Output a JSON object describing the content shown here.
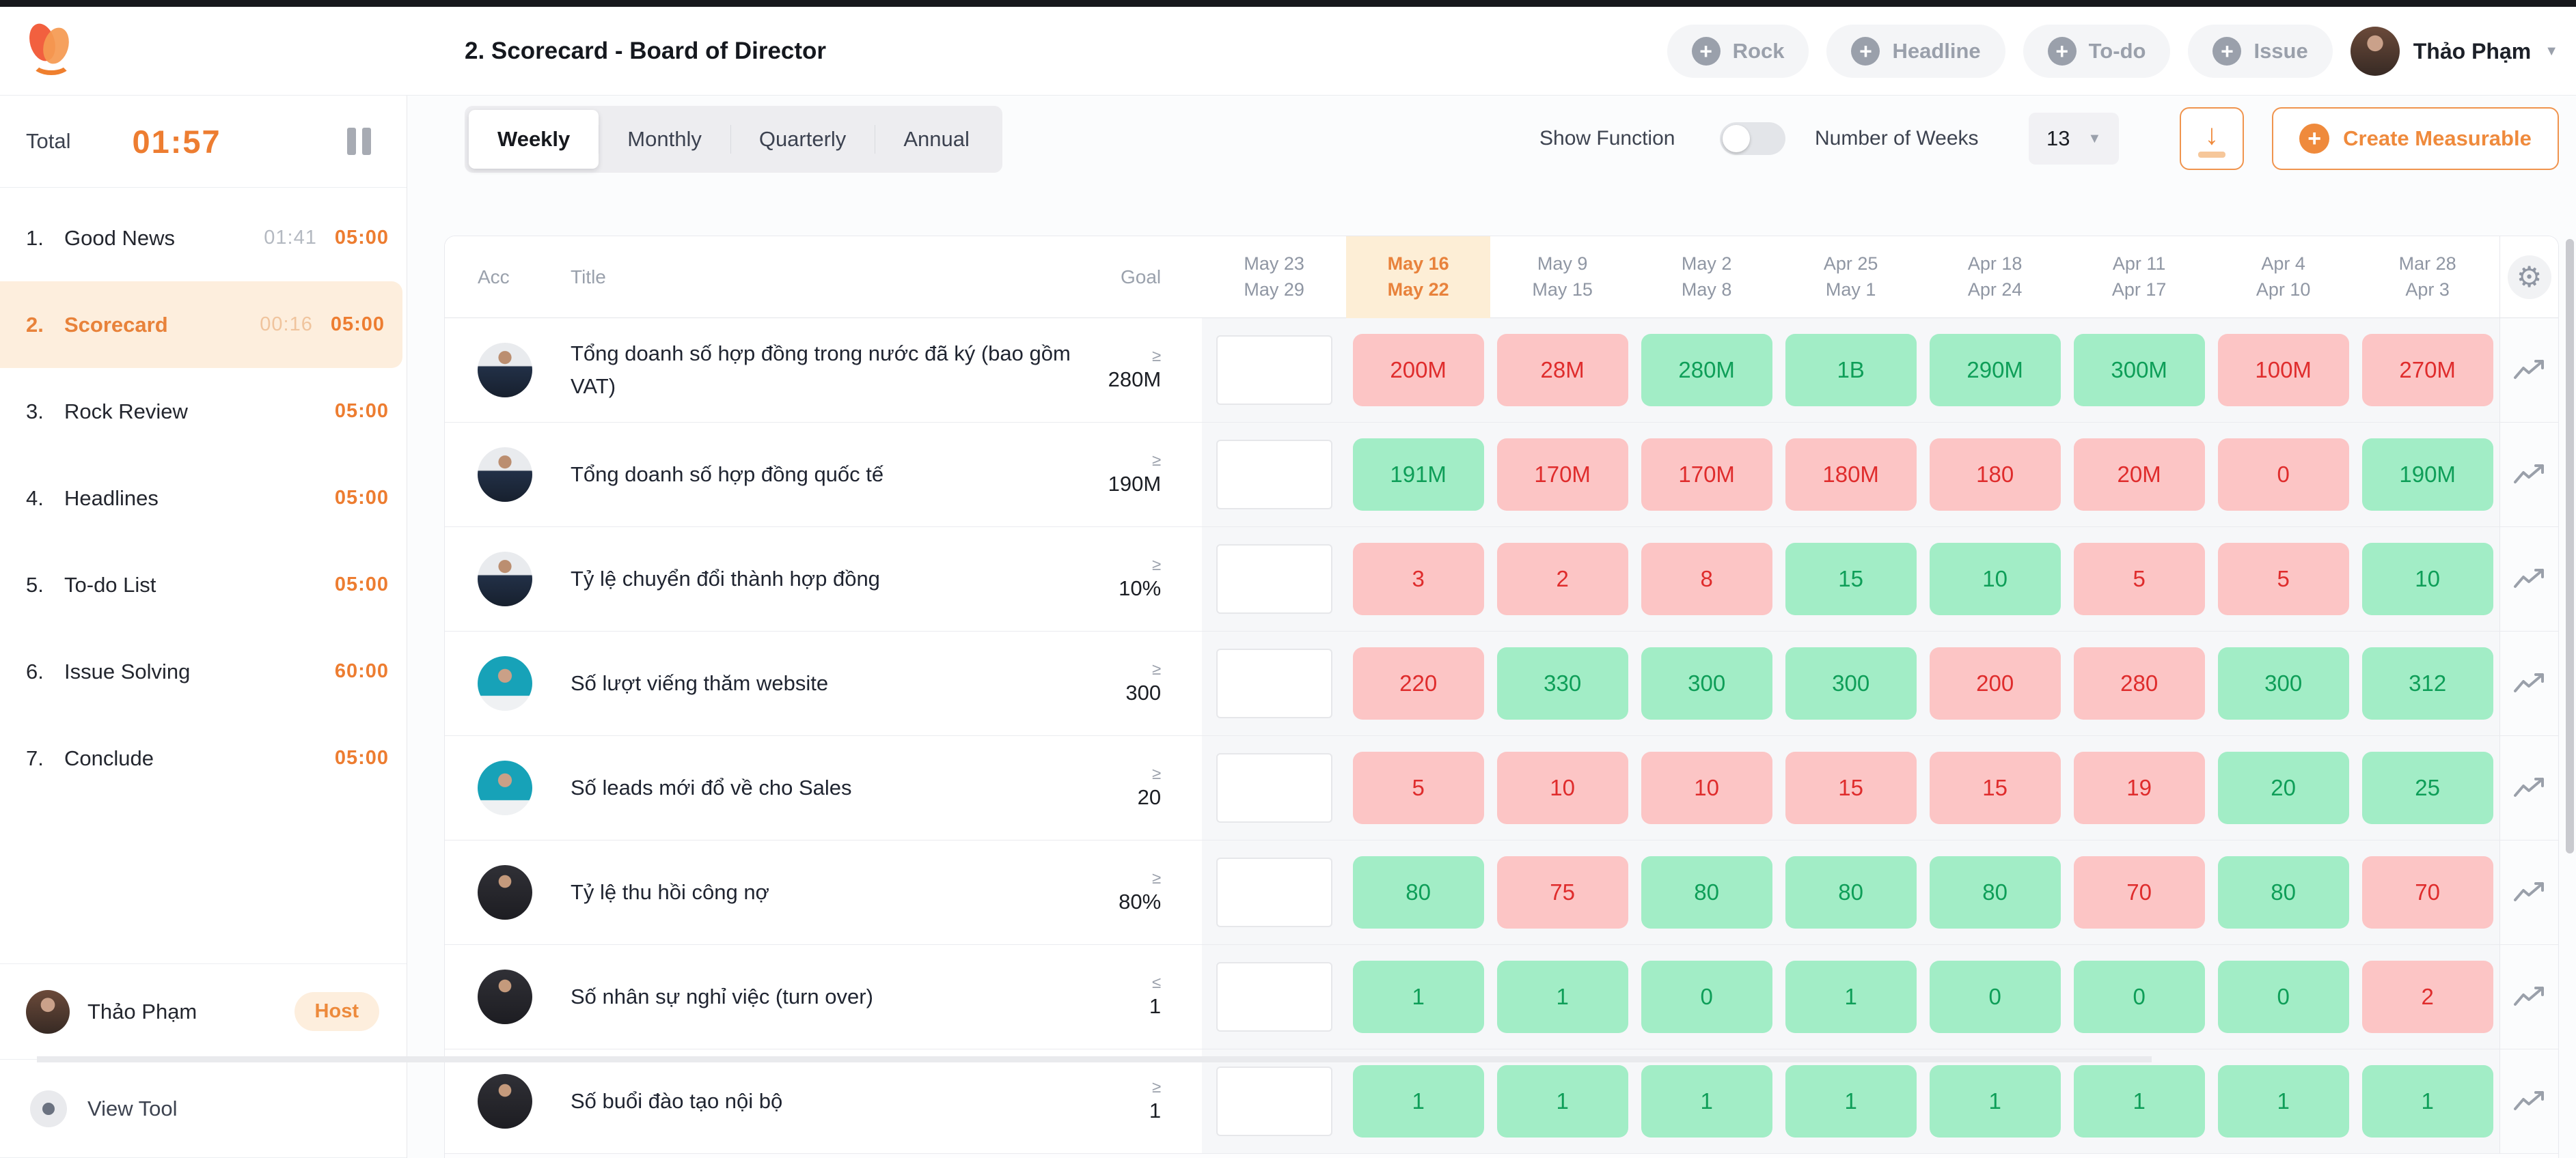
{
  "header": {
    "title": "2. Scorecard - Board of Director",
    "actions": [
      {
        "label": "Rock"
      },
      {
        "label": "Headline"
      },
      {
        "label": "To-do"
      },
      {
        "label": "Issue"
      }
    ],
    "user_name": "Thảo Phạm"
  },
  "sidebar": {
    "total_label": "Total",
    "total_time": "01:57",
    "items": [
      {
        "num": "1.",
        "label": "Good News",
        "elapsed": "01:41",
        "duration": "05:00",
        "active": false
      },
      {
        "num": "2.",
        "label": "Scorecard",
        "elapsed": "00:16",
        "duration": "05:00",
        "active": true
      },
      {
        "num": "3.",
        "label": "Rock Review",
        "elapsed": "",
        "duration": "05:00",
        "active": false
      },
      {
        "num": "4.",
        "label": "Headlines",
        "elapsed": "",
        "duration": "05:00",
        "active": false
      },
      {
        "num": "5.",
        "label": "To-do List",
        "elapsed": "",
        "duration": "05:00",
        "active": false
      },
      {
        "num": "6.",
        "label": "Issue Solving",
        "elapsed": "",
        "duration": "60:00",
        "active": false
      },
      {
        "num": "7.",
        "label": "Conclude",
        "elapsed": "",
        "duration": "05:00",
        "active": false
      }
    ],
    "participant_name": "Thảo Phạm",
    "participant_badge": "Host",
    "view_tool_label": "View Tool"
  },
  "toolbar": {
    "tabs": [
      "Weekly",
      "Monthly",
      "Quarterly",
      "Annual"
    ],
    "active_tab": "Weekly",
    "show_function_label": "Show Function",
    "show_function_on": false,
    "number_of_weeks_label": "Number of Weeks",
    "number_of_weeks_value": "13",
    "download_icon": "download-icon",
    "create_label": "Create Measurable"
  },
  "table": {
    "col_acc": "Acc",
    "col_title": "Title",
    "col_goal": "Goal",
    "weeks": [
      {
        "line1": "May 23",
        "line2": "May 29",
        "current": false
      },
      {
        "line1": "May 16",
        "line2": "May 22",
        "current": true
      },
      {
        "line1": "May 9",
        "line2": "May 15",
        "current": false
      },
      {
        "line1": "May 2",
        "line2": "May 8",
        "current": false
      },
      {
        "line1": "Apr 25",
        "line2": "May 1",
        "current": false
      },
      {
        "line1": "Apr 18",
        "line2": "Apr 24",
        "current": false
      },
      {
        "line1": "Apr 11",
        "line2": "Apr 17",
        "current": false
      },
      {
        "line1": "Apr 4",
        "line2": "Apr 10",
        "current": false
      },
      {
        "line1": "Mar 28",
        "line2": "Apr 3",
        "current": false
      }
    ],
    "rows": [
      {
        "avatar": "man",
        "title": "Tổng doanh số hợp đồng trong nước đã ký (bao gồm VAT)",
        "op": "≥",
        "goal": "280M",
        "values": [
          {
            "v": "200M",
            "s": "red"
          },
          {
            "v": "28M",
            "s": "red"
          },
          {
            "v": "280M",
            "s": "green"
          },
          {
            "v": "1B",
            "s": "green"
          },
          {
            "v": "290M",
            "s": "green"
          },
          {
            "v": "300M",
            "s": "green"
          },
          {
            "v": "100M",
            "s": "red"
          },
          {
            "v": "270M",
            "s": "red"
          }
        ]
      },
      {
        "avatar": "man",
        "title": "Tổng doanh số hợp đồng quốc tế",
        "op": "≥",
        "goal": "190M",
        "values": [
          {
            "v": "191M",
            "s": "green"
          },
          {
            "v": "170M",
            "s": "red"
          },
          {
            "v": "170M",
            "s": "red"
          },
          {
            "v": "180M",
            "s": "red"
          },
          {
            "v": "180",
            "s": "red"
          },
          {
            "v": "20M",
            "s": "red"
          },
          {
            "v": "0",
            "s": "red"
          },
          {
            "v": "190M",
            "s": "green"
          }
        ]
      },
      {
        "avatar": "man",
        "title": "Tỷ lệ chuyển đổi thành hợp đồng",
        "op": "≥",
        "goal": "10%",
        "values": [
          {
            "v": "3",
            "s": "red"
          },
          {
            "v": "2",
            "s": "red"
          },
          {
            "v": "8",
            "s": "red"
          },
          {
            "v": "15",
            "s": "green"
          },
          {
            "v": "10",
            "s": "green"
          },
          {
            "v": "5",
            "s": "red"
          },
          {
            "v": "5",
            "s": "red"
          },
          {
            "v": "10",
            "s": "green"
          }
        ]
      },
      {
        "avatar": "woman-teal",
        "title": "Số lượt viếng thăm website",
        "op": "≥",
        "goal": "300",
        "values": [
          {
            "v": "220",
            "s": "red"
          },
          {
            "v": "330",
            "s": "green"
          },
          {
            "v": "300",
            "s": "green"
          },
          {
            "v": "300",
            "s": "green"
          },
          {
            "v": "200",
            "s": "red"
          },
          {
            "v": "280",
            "s": "red"
          },
          {
            "v": "300",
            "s": "green"
          },
          {
            "v": "312",
            "s": "green"
          }
        ]
      },
      {
        "avatar": "woman-teal",
        "title": "Số leads mới đổ về cho Sales",
        "op": "≥",
        "goal": "20",
        "values": [
          {
            "v": "5",
            "s": "red"
          },
          {
            "v": "10",
            "s": "red"
          },
          {
            "v": "10",
            "s": "red"
          },
          {
            "v": "15",
            "s": "red"
          },
          {
            "v": "15",
            "s": "red"
          },
          {
            "v": "19",
            "s": "red"
          },
          {
            "v": "20",
            "s": "green"
          },
          {
            "v": "25",
            "s": "green"
          }
        ]
      },
      {
        "avatar": "woman-dark",
        "title": "Tỷ lệ thu hồi công nợ",
        "op": "≥",
        "goal": "80%",
        "values": [
          {
            "v": "80",
            "s": "green"
          },
          {
            "v": "75",
            "s": "red"
          },
          {
            "v": "80",
            "s": "green"
          },
          {
            "v": "80",
            "s": "green"
          },
          {
            "v": "80",
            "s": "green"
          },
          {
            "v": "70",
            "s": "red"
          },
          {
            "v": "80",
            "s": "green"
          },
          {
            "v": "70",
            "s": "red"
          }
        ]
      },
      {
        "avatar": "woman-dark",
        "title": "Số nhân sự nghỉ việc (turn over)",
        "op": "≤",
        "goal": "1",
        "values": [
          {
            "v": "1",
            "s": "green"
          },
          {
            "v": "1",
            "s": "green"
          },
          {
            "v": "0",
            "s": "green"
          },
          {
            "v": "1",
            "s": "green"
          },
          {
            "v": "0",
            "s": "green"
          },
          {
            "v": "0",
            "s": "green"
          },
          {
            "v": "0",
            "s": "green"
          },
          {
            "v": "2",
            "s": "red"
          }
        ]
      },
      {
        "avatar": "woman-dark",
        "title": "Số buổi đào tạo nội bộ",
        "op": "≥",
        "goal": "1",
        "values": [
          {
            "v": "1",
            "s": "green"
          },
          {
            "v": "1",
            "s": "green"
          },
          {
            "v": "1",
            "s": "green"
          },
          {
            "v": "1",
            "s": "green"
          },
          {
            "v": "1",
            "s": "green"
          },
          {
            "v": "1",
            "s": "green"
          },
          {
            "v": "1",
            "s": "green"
          },
          {
            "v": "1",
            "s": "green"
          }
        ]
      }
    ]
  },
  "colors": {
    "accent_orange": "#ed7d31",
    "highlight_bg": "#fdeed6",
    "green_bg": "#a2edc6",
    "green_text": "#0e9e58",
    "red_bg": "#fcc5c5",
    "red_text": "#df2c2c"
  }
}
